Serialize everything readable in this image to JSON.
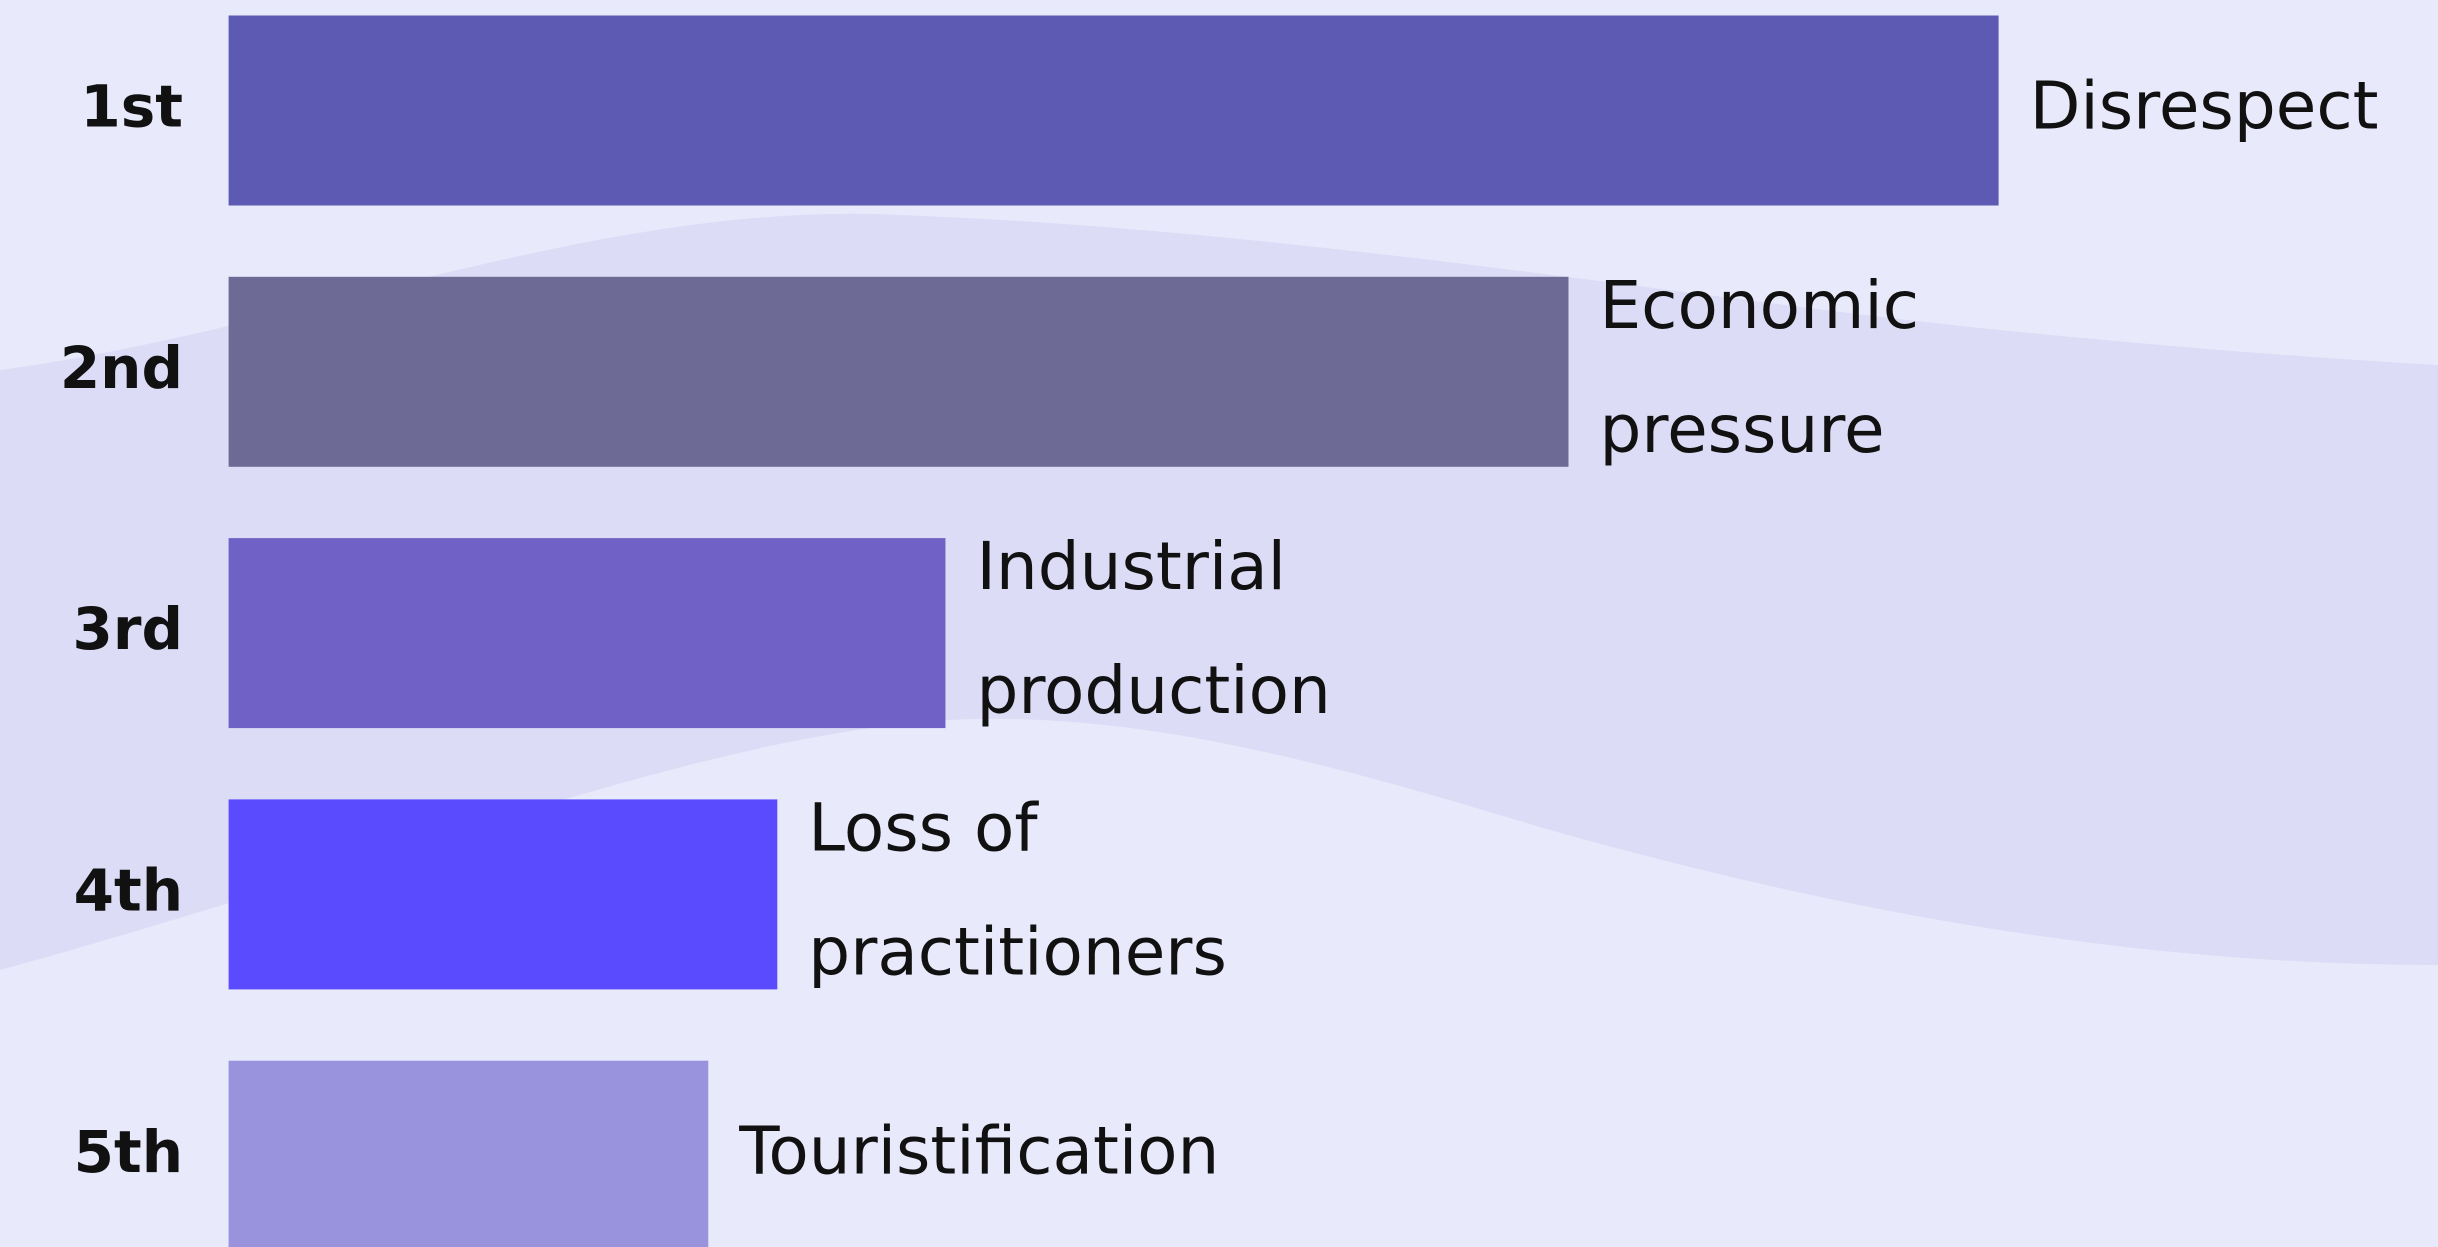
{
  "chart_data": {
    "type": "bar",
    "categories": [
      "1st",
      "2nd",
      "3rd",
      "4th",
      "5th"
    ],
    "bar_labels": [
      [
        "Disrespect"
      ],
      [
        "Economic",
        "pressure"
      ],
      [
        "Industrial",
        "production"
      ],
      [
        "Loss of",
        "practitioners"
      ],
      [
        "Touristification"
      ]
    ],
    "values": [
      100,
      75.7,
      40.5,
      31.0,
      27.1
    ],
    "colors": [
      "#5d5ab3",
      "#6e6a96",
      "#6f61c6",
      "#5b4bff",
      "#9993de"
    ],
    "xlim": [
      0,
      100
    ]
  }
}
